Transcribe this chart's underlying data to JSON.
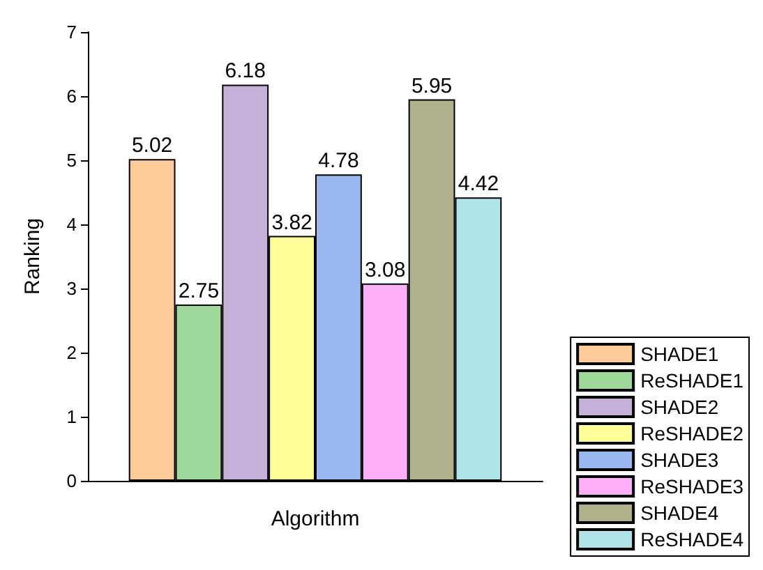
{
  "chart_data": {
    "type": "bar",
    "xlabel": "Algorithm",
    "ylabel": "Ranking",
    "categories": [
      null
    ],
    "series": [
      {
        "name": "SHADE1",
        "color": "#fdcc9a",
        "values": [
          5.02
        ]
      },
      {
        "name": "ReSHADE1",
        "color": "#9ed89a",
        "values": [
          2.75
        ]
      },
      {
        "name": "SHADE2",
        "color": "#c4b0d8",
        "values": [
          6.18
        ]
      },
      {
        "name": "ReSHADE2",
        "color": "#ffff99",
        "values": [
          3.82
        ]
      },
      {
        "name": "SHADE3",
        "color": "#9ab8f0",
        "values": [
          4.78
        ]
      },
      {
        "name": "ReSHADE3",
        "color": "#fdb0f8",
        "values": [
          3.08
        ]
      },
      {
        "name": "SHADE4",
        "color": "#b0b08a",
        "values": [
          5.95
        ]
      },
      {
        "name": "ReSHADE4",
        "color": "#b0e4e8",
        "values": [
          4.42
        ]
      }
    ],
    "ylim": [
      0,
      7
    ],
    "yticks": [
      0,
      1,
      2,
      3,
      4,
      5,
      6,
      7
    ],
    "data_labels": true,
    "legend": "bottom right",
    "grid": false
  }
}
